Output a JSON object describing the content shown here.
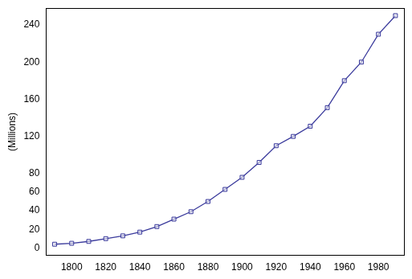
{
  "chart_data": {
    "type": "line",
    "y_label": "(Millions)",
    "x": [
      1790,
      1800,
      1810,
      1820,
      1830,
      1840,
      1850,
      1860,
      1870,
      1880,
      1890,
      1900,
      1910,
      1920,
      1930,
      1940,
      1950,
      1960,
      1970,
      1980,
      1990
    ],
    "values": [
      4,
      5,
      7,
      10,
      13,
      17,
      23,
      31,
      39,
      50,
      63,
      76,
      92,
      110,
      120,
      131,
      151,
      180,
      200,
      230,
      250
    ],
    "color": "#3a3a9c",
    "marker": "square",
    "xlim": [
      1785,
      1995
    ],
    "xticks": [
      1800,
      1820,
      1840,
      1860,
      1880,
      1900,
      1920,
      1940,
      1960,
      1980
    ],
    "ylim": [
      -8,
      258
    ],
    "yticks": [
      0,
      20,
      40,
      60,
      80,
      120,
      160,
      200,
      240
    ],
    "grid": false
  }
}
